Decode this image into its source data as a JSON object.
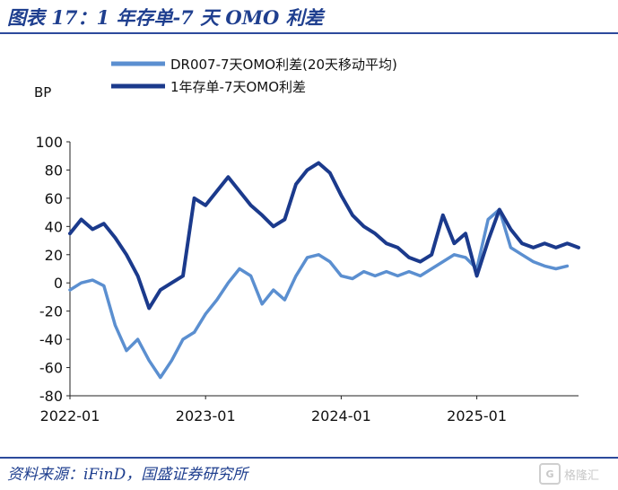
{
  "title": "图表 17：1 年存单-7 天 OMO 利差",
  "source": "资料来源：iFinD，国盛证券研究所",
  "watermark": {
    "icon": "gelonghui-logo-icon",
    "text": "格隆汇"
  },
  "chart_data": {
    "type": "line",
    "ylabel": "BP",
    "ylim": [
      -80,
      100
    ],
    "yticks": [
      "100",
      "80",
      "60",
      "40",
      "20",
      "0",
      "-20",
      "-40",
      "-60",
      "-80"
    ],
    "xticks": [
      "2022-01",
      "2023-01",
      "2024-01",
      "2025-01"
    ],
    "xlim": [
      "2022-01",
      "2025-10"
    ],
    "grid": false,
    "legend": "top-left",
    "series": [
      {
        "name": "DR007-7天OMO利差(20天移动平均)",
        "color": "#5b8fd0",
        "points": [
          [
            "2022-01",
            -5
          ],
          [
            "2022-02",
            0
          ],
          [
            "2022-03",
            2
          ],
          [
            "2022-04",
            -2
          ],
          [
            "2022-05",
            -30
          ],
          [
            "2022-06",
            -48
          ],
          [
            "2022-07",
            -40
          ],
          [
            "2022-08",
            -55
          ],
          [
            "2022-09",
            -67
          ],
          [
            "2022-10",
            -55
          ],
          [
            "2022-11",
            -40
          ],
          [
            "2022-12",
            -35
          ],
          [
            "2023-01",
            -22
          ],
          [
            "2023-02",
            -12
          ],
          [
            "2023-03",
            0
          ],
          [
            "2023-04",
            10
          ],
          [
            "2023-05",
            5
          ],
          [
            "2023-06",
            -15
          ],
          [
            "2023-07",
            -5
          ],
          [
            "2023-08",
            -12
          ],
          [
            "2023-09",
            5
          ],
          [
            "2023-10",
            18
          ],
          [
            "2023-11",
            20
          ],
          [
            "2023-12",
            15
          ],
          [
            "2024-01",
            5
          ],
          [
            "2024-02",
            3
          ],
          [
            "2024-03",
            8
          ],
          [
            "2024-04",
            5
          ],
          [
            "2024-05",
            8
          ],
          [
            "2024-06",
            5
          ],
          [
            "2024-07",
            8
          ],
          [
            "2024-08",
            5
          ],
          [
            "2024-09",
            10
          ],
          [
            "2024-10",
            15
          ],
          [
            "2024-11",
            20
          ],
          [
            "2024-12",
            18
          ],
          [
            "2025-01",
            10
          ],
          [
            "2025-02",
            45
          ],
          [
            "2025-03",
            52
          ],
          [
            "2025-04",
            25
          ],
          [
            "2025-05",
            20
          ],
          [
            "2025-06",
            15
          ],
          [
            "2025-07",
            12
          ],
          [
            "2025-08",
            10
          ],
          [
            "2025-09",
            12
          ]
        ]
      },
      {
        "name": "1年存单-7天OMO利差",
        "color": "#1b3a8c",
        "points": [
          [
            "2022-01",
            35
          ],
          [
            "2022-02",
            45
          ],
          [
            "2022-03",
            38
          ],
          [
            "2022-04",
            42
          ],
          [
            "2022-05",
            32
          ],
          [
            "2022-06",
            20
          ],
          [
            "2022-07",
            5
          ],
          [
            "2022-08",
            -18
          ],
          [
            "2022-09",
            -5
          ],
          [
            "2022-10",
            0
          ],
          [
            "2022-11",
            5
          ],
          [
            "2022-12",
            60
          ],
          [
            "2023-01",
            55
          ],
          [
            "2023-02",
            65
          ],
          [
            "2023-03",
            75
          ],
          [
            "2023-04",
            65
          ],
          [
            "2023-05",
            55
          ],
          [
            "2023-06",
            48
          ],
          [
            "2023-07",
            40
          ],
          [
            "2023-08",
            45
          ],
          [
            "2023-09",
            70
          ],
          [
            "2023-10",
            80
          ],
          [
            "2023-11",
            85
          ],
          [
            "2023-12",
            78
          ],
          [
            "2024-01",
            62
          ],
          [
            "2024-02",
            48
          ],
          [
            "2024-03",
            40
          ],
          [
            "2024-04",
            35
          ],
          [
            "2024-05",
            28
          ],
          [
            "2024-06",
            25
          ],
          [
            "2024-07",
            18
          ],
          [
            "2024-08",
            15
          ],
          [
            "2024-09",
            20
          ],
          [
            "2024-10",
            48
          ],
          [
            "2024-11",
            28
          ],
          [
            "2024-12",
            35
          ],
          [
            "2025-01",
            5
          ],
          [
            "2025-02",
            30
          ],
          [
            "2025-03",
            52
          ],
          [
            "2025-04",
            38
          ],
          [
            "2025-05",
            28
          ],
          [
            "2025-06",
            25
          ],
          [
            "2025-07",
            28
          ],
          [
            "2025-08",
            25
          ],
          [
            "2025-09",
            28
          ],
          [
            "2025-10",
            25
          ]
        ]
      }
    ]
  }
}
